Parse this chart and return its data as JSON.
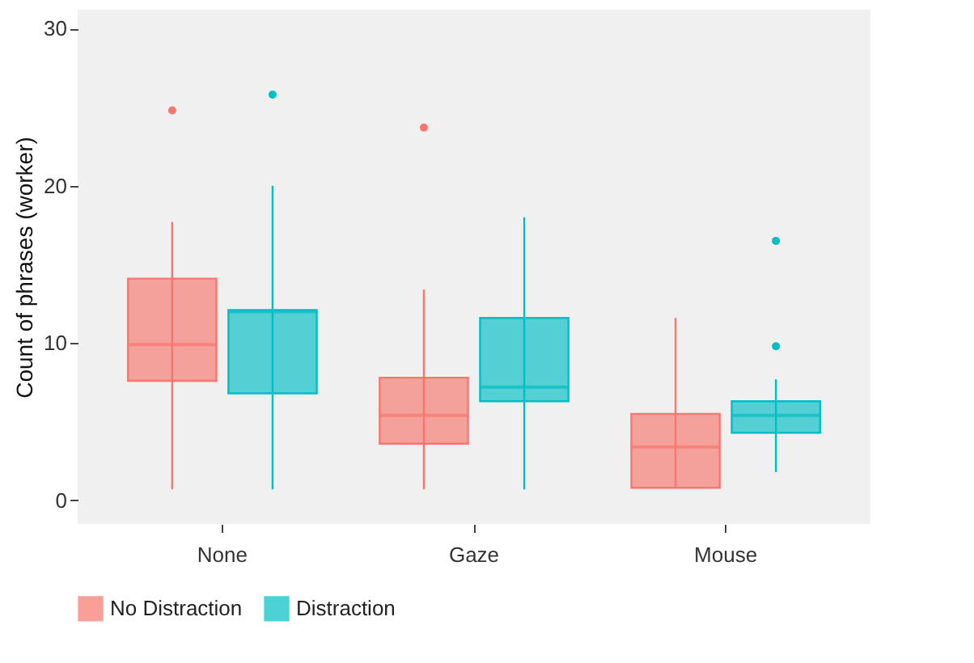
{
  "chart_data": {
    "type": "box",
    "ylabel": "Count of phrases (worker)",
    "categories": [
      "None",
      "Gaze",
      "Mouse"
    ],
    "ylim": [
      -1.5,
      31.2
    ],
    "yticks": [
      0,
      10,
      20,
      30
    ],
    "grid": false,
    "legend": "bottom",
    "series": [
      {
        "name": "No Distraction",
        "color": "#f8766d",
        "boxes": [
          {
            "low": 0.7,
            "q1": 7.6,
            "median": 9.9,
            "q3": 14.1,
            "high": 17.7,
            "outliers": [
              24.8
            ]
          },
          {
            "low": 0.7,
            "q1": 3.6,
            "median": 5.4,
            "q3": 7.8,
            "high": 13.4,
            "outliers": [
              23.7
            ]
          },
          {
            "low": 0.8,
            "q1": 0.8,
            "median": 3.4,
            "q3": 5.5,
            "high": 11.6
          }
        ]
      },
      {
        "name": "Distraction",
        "color": "#00bfc4",
        "boxes": [
          {
            "low": 0.7,
            "q1": 6.8,
            "median": 12,
            "q3": 12.1,
            "high": 20,
            "outliers": [
              25.8
            ]
          },
          {
            "low": 0.7,
            "q1": 6.3,
            "median": 7.2,
            "q3": 11.6,
            "high": 18
          },
          {
            "low": 1.8,
            "q1": 4.3,
            "median": 5.4,
            "q3": 6.3,
            "high": 7.7,
            "outliers": [
              9.8,
              16.5
            ]
          }
        ]
      }
    ]
  }
}
